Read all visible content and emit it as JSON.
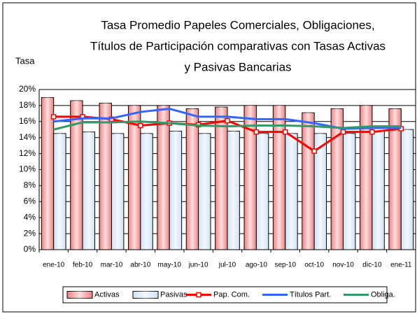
{
  "chart_data": {
    "type": "bar",
    "title": [
      "Tasa Promedio Papeles Comerciales, Obligaciones,",
      "Títulos de Participación comparativas con Tasas Activas",
      "y Pasivas Bancarias"
    ],
    "y_label": "Tasa",
    "categories": [
      "ene-10",
      "feb-10",
      "mar-10",
      "abr-10",
      "may-10",
      "jun-10",
      "jul-10",
      "ago-10",
      "sep-10",
      "oct-10",
      "nov-10",
      "dic-10",
      "ene-11"
    ],
    "series": [
      {
        "name": "Activas",
        "type": "bar",
        "color": "#f08080",
        "values": [
          19,
          18.6,
          18.3,
          18,
          18,
          17.6,
          17.8,
          18,
          18,
          17.1,
          17.6,
          18,
          17.6
        ]
      },
      {
        "name": "Pasivas",
        "type": "bar",
        "color": "#cfe3f7",
        "values": [
          14.5,
          14.7,
          14.5,
          14.5,
          14.8,
          14.5,
          14.8,
          14.5,
          14.5,
          14.5,
          14.5,
          14.8,
          15
        ]
      },
      {
        "name": "Pap. Com.",
        "type": "line",
        "marker": "square",
        "color": "#ff0000",
        "values": [
          16.6,
          16.6,
          16.3,
          15.5,
          15.8,
          15.6,
          16.1,
          14.7,
          14.7,
          12.3,
          14.7,
          14.7,
          15.1
        ]
      },
      {
        "name": "Títulos Part.",
        "type": "line",
        "color": "#3366ff",
        "values": [
          16,
          16.4,
          16.4,
          17.2,
          17.6,
          16.6,
          16.6,
          16.3,
          16.3,
          15.8,
          15.1,
          15.2,
          15.2
        ]
      },
      {
        "name": "Obliga.",
        "type": "line",
        "color": "#339966",
        "values": [
          15,
          15.9,
          15.9,
          16,
          15.8,
          15.5,
          15.4,
          15.5,
          15.5,
          15.4,
          15.2,
          15.4,
          15.4
        ]
      }
    ],
    "ylim": [
      0,
      20
    ],
    "yticks": [
      {
        "value": 0,
        "label": "0%"
      },
      {
        "value": 2,
        "label": "2%"
      },
      {
        "value": 4,
        "label": "4%"
      },
      {
        "value": 6,
        "label": "6%"
      },
      {
        "value": 8,
        "label": "8%"
      },
      {
        "value": 10,
        "label": "10%"
      },
      {
        "value": 12,
        "label": "12%"
      },
      {
        "value": 14,
        "label": "14%"
      },
      {
        "value": 16,
        "label": "16%"
      },
      {
        "value": 18,
        "label": "18%"
      },
      {
        "value": 20,
        "label": "20%"
      }
    ],
    "grid": true
  }
}
